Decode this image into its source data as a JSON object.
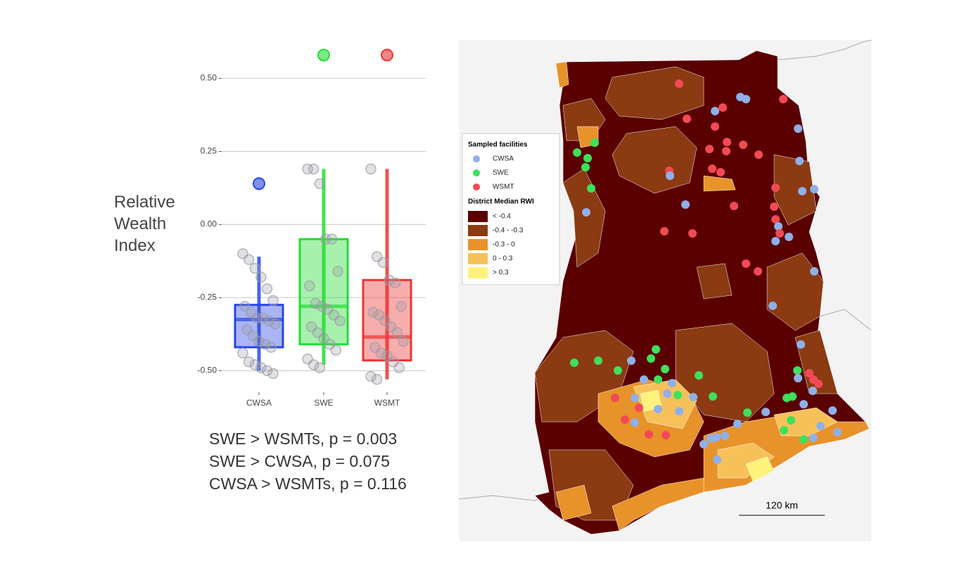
{
  "chart_data": {
    "type": "box",
    "y_label": "Relative Wealth Index",
    "ylim": [
      -0.55,
      0.6
    ],
    "yticks": [
      {
        "value": 0.5,
        "label": "0.50"
      },
      {
        "value": 0.25,
        "label": "0.25"
      },
      {
        "value": 0,
        "label": "0.00"
      },
      {
        "value": -0.25,
        "label": "-0.25"
      },
      {
        "value": -0.5,
        "label": "-0.50"
      }
    ],
    "grid": true,
    "point_color": "#9a9aa6",
    "series": [
      {
        "name": "CWSA",
        "color": "#2846e6",
        "q1": -0.42,
        "median": -0.325,
        "q3": -0.275,
        "whisker_low": -0.5,
        "whisker_high": -0.11,
        "outliers": [
          0.14
        ],
        "points": [
          -0.1,
          -0.12,
          -0.15,
          -0.18,
          -0.22,
          -0.26,
          -0.28,
          -0.3,
          -0.32,
          -0.32,
          -0.33,
          -0.34,
          -0.36,
          -0.38,
          -0.4,
          -0.41,
          -0.42,
          -0.44,
          -0.47,
          -0.48,
          -0.49,
          -0.5,
          -0.51
        ]
      },
      {
        "name": "SWE",
        "color": "#22dd33",
        "q1": -0.41,
        "median": -0.28,
        "q3": -0.05,
        "whisker_low": -0.48,
        "whisker_high": 0.19,
        "outliers": [
          0.58
        ],
        "points": [
          0.19,
          0.19,
          0.14,
          -0.05,
          -0.05,
          -0.16,
          -0.21,
          -0.27,
          -0.28,
          -0.29,
          -0.31,
          -0.33,
          -0.35,
          -0.37,
          -0.39,
          -0.41,
          -0.43,
          -0.46,
          -0.48,
          -0.49
        ]
      },
      {
        "name": "WSMT",
        "color": "#ee3333",
        "q1": -0.465,
        "median": -0.385,
        "q3": -0.19,
        "whisker_low": -0.53,
        "whisker_high": 0.19,
        "outliers": [
          0.58
        ],
        "points": [
          0.19,
          -0.11,
          -0.13,
          -0.19,
          -0.2,
          -0.28,
          -0.3,
          -0.31,
          -0.33,
          -0.35,
          -0.37,
          -0.4,
          -0.42,
          -0.44,
          -0.45,
          -0.47,
          -0.49,
          -0.52,
          -0.53
        ]
      }
    ],
    "annotations": [
      "SWE > WSMTs, p = 0.003",
      "SWE > CWSA, p = 0.075",
      "CWSA > WSMTs, p = 0.116"
    ]
  },
  "map": {
    "facilities_title": "Sampled facilities",
    "facilities": [
      {
        "name": "CWSA",
        "color": "#8fb0ea"
      },
      {
        "name": "SWE",
        "color": "#3fe05a"
      },
      {
        "name": "WSMT",
        "color": "#f24a55"
      }
    ],
    "rwi_title": "District Median RWI",
    "rwi_classes": [
      {
        "label": "< -0.4",
        "color": "#5a0000"
      },
      {
        "label": "-0.4 - -0.3",
        "color": "#8b3a12"
      },
      {
        "label": "-0.3 - 0",
        "color": "#e8922a"
      },
      {
        "label": "0 - 0.3",
        "color": "#f7c15a"
      },
      {
        "label": "> 0.3",
        "color": "#fff27a"
      }
    ],
    "scale_label": "120 km"
  }
}
